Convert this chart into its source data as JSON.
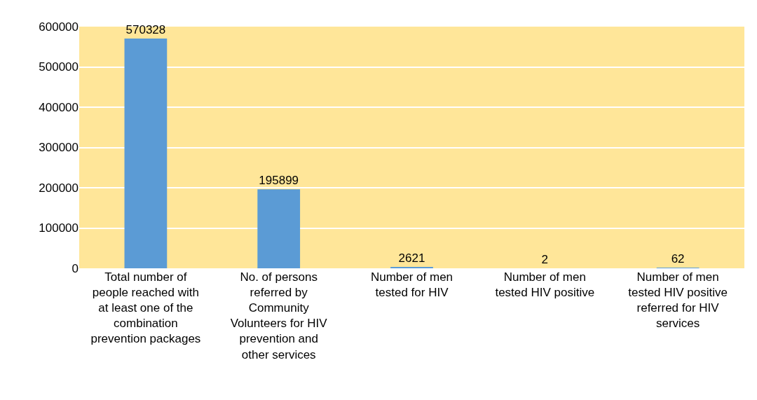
{
  "chart_data": {
    "type": "bar",
    "categories": [
      "Total number of people reached with at least one of the combination prevention packages",
      "No. of persons referred by Community Volunteers for HIV prevention and other services",
      "Number of men tested for HIV",
      "Number of men tested HIV positive",
      "Number of men tested HIV positive referred for HIV services"
    ],
    "values": [
      570328,
      195899,
      2621,
      2,
      62
    ],
    "color": "#5b9bd5",
    "ylim": [
      0,
      600000
    ],
    "yticks": [
      0,
      100000,
      200000,
      300000,
      400000,
      500000,
      600000
    ],
    "grid": "y",
    "data_labels": true,
    "legend": false
  }
}
